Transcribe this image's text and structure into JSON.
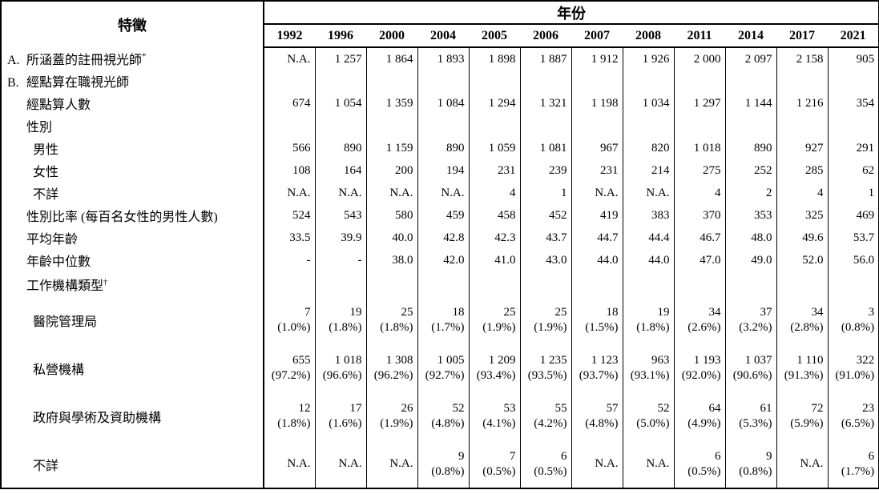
{
  "table": {
    "corner_header": "特徵",
    "year_group_header": "年份",
    "years": [
      "1992",
      "1996",
      "2000",
      "2004",
      "2005",
      "2006",
      "2007",
      "2008",
      "2011",
      "2014",
      "2017",
      "2021"
    ],
    "rows": [
      {
        "name": "covered-registered-optometrists",
        "prefix": "A.",
        "label": "所涵蓋的註冊視光師",
        "sup": "*",
        "indent": 0,
        "kind": "single",
        "cells": [
          "N.A.",
          "1 257",
          "1 864",
          "1 893",
          "1 898",
          "1 887",
          "1 912",
          "1 926",
          "2 000",
          "2 097",
          "2 158",
          "905"
        ]
      },
      {
        "name": "enumerated-working-optometrists",
        "prefix": "B.",
        "label": "經點算在職視光師",
        "sup": "",
        "indent": 0,
        "kind": "single",
        "cells": null
      },
      {
        "name": "persons-enumerated",
        "prefix": "",
        "label": "經點算人數",
        "sup": "",
        "indent": 1,
        "kind": "single",
        "cells": [
          "674",
          "1 054",
          "1 359",
          "1 084",
          "1 294",
          "1 321",
          "1 198",
          "1 034",
          "1 297",
          "1 144",
          "1 216",
          "354"
        ]
      },
      {
        "name": "sex",
        "prefix": "",
        "label": "性別",
        "sup": "",
        "indent": 1,
        "kind": "single",
        "cells": null
      },
      {
        "name": "male",
        "prefix": "",
        "label": "男性",
        "sup": "",
        "indent": 2,
        "kind": "single",
        "cells": [
          "566",
          "890",
          "1 159",
          "890",
          "1 059",
          "1 081",
          "967",
          "820",
          "1 018",
          "890",
          "927",
          "291"
        ]
      },
      {
        "name": "female",
        "prefix": "",
        "label": "女性",
        "sup": "",
        "indent": 2,
        "kind": "single",
        "cells": [
          "108",
          "164",
          "200",
          "194",
          "231",
          "239",
          "231",
          "214",
          "275",
          "252",
          "285",
          "62"
        ]
      },
      {
        "name": "sex-unknown",
        "prefix": "",
        "label": "不詳",
        "sup": "",
        "indent": 2,
        "kind": "single",
        "cells": [
          "N.A.",
          "N.A.",
          "N.A.",
          "N.A.",
          "4",
          "1",
          "N.A.",
          "N.A.",
          "4",
          "2",
          "4",
          "1"
        ]
      },
      {
        "name": "sex-ratio",
        "prefix": "",
        "label": "性別比率 (每百名女性的男性人數)",
        "sup": "",
        "indent": 1,
        "kind": "single",
        "cells": [
          "524",
          "543",
          "580",
          "459",
          "458",
          "452",
          "419",
          "383",
          "370",
          "353",
          "325",
          "469"
        ]
      },
      {
        "name": "mean-age",
        "prefix": "",
        "label": "平均年齡",
        "sup": "",
        "indent": 1,
        "kind": "single",
        "cells": [
          "33.5",
          "39.9",
          "40.0",
          "42.8",
          "42.3",
          "43.7",
          "44.7",
          "44.4",
          "46.7",
          "48.0",
          "49.6",
          "53.7"
        ]
      },
      {
        "name": "median-age",
        "prefix": "",
        "label": "年齡中位數",
        "sup": "",
        "indent": 1,
        "kind": "single",
        "cells": [
          "-",
          "-",
          "38.0",
          "42.0",
          "41.0",
          "43.0",
          "44.0",
          "44.0",
          "47.0",
          "49.0",
          "52.0",
          "56.0"
        ]
      },
      {
        "name": "type-of-working-organisation",
        "prefix": "",
        "label": "工作機構類型",
        "sup": "†",
        "indent": 1,
        "kind": "section",
        "cells": null
      },
      {
        "name": "hospital-authority",
        "prefix": "",
        "label": "醫院管理局",
        "sup": "",
        "indent": 2,
        "kind": "double",
        "cells": [
          {
            "count": "7",
            "pct": "(1.0%)"
          },
          {
            "count": "19",
            "pct": "(1.8%)"
          },
          {
            "count": "25",
            "pct": "(1.8%)"
          },
          {
            "count": "18",
            "pct": "(1.7%)"
          },
          {
            "count": "25",
            "pct": "(1.9%)"
          },
          {
            "count": "25",
            "pct": "(1.9%)"
          },
          {
            "count": "18",
            "pct": "(1.5%)"
          },
          {
            "count": "19",
            "pct": "(1.8%)"
          },
          {
            "count": "34",
            "pct": "(2.6%)"
          },
          {
            "count": "37",
            "pct": "(3.2%)"
          },
          {
            "count": "34",
            "pct": "(2.8%)"
          },
          {
            "count": "3",
            "pct": "(0.8%)"
          }
        ]
      },
      {
        "name": "private-sector",
        "prefix": "",
        "label": "私營機構",
        "sup": "",
        "indent": 2,
        "kind": "double",
        "cells": [
          {
            "count": "655",
            "pct": "(97.2%)"
          },
          {
            "count": "1 018",
            "pct": "(96.6%)"
          },
          {
            "count": "1 308",
            "pct": "(96.2%)"
          },
          {
            "count": "1 005",
            "pct": "(92.7%)"
          },
          {
            "count": "1 209",
            "pct": "(93.4%)"
          },
          {
            "count": "1 235",
            "pct": "(93.5%)"
          },
          {
            "count": "1 123",
            "pct": "(93.7%)"
          },
          {
            "count": "963",
            "pct": "(93.1%)"
          },
          {
            "count": "1 193",
            "pct": "(92.0%)"
          },
          {
            "count": "1 037",
            "pct": "(90.6%)"
          },
          {
            "count": "1 110",
            "pct": "(91.3%)"
          },
          {
            "count": "322",
            "pct": "(91.0%)"
          }
        ]
      },
      {
        "name": "government-academic-subvented",
        "prefix": "",
        "label": "政府與學術及資助機構",
        "sup": "",
        "indent": 2,
        "kind": "double",
        "cells": [
          {
            "count": "12",
            "pct": "(1.8%)"
          },
          {
            "count": "17",
            "pct": "(1.6%)"
          },
          {
            "count": "26",
            "pct": "(1.9%)"
          },
          {
            "count": "52",
            "pct": "(4.8%)"
          },
          {
            "count": "53",
            "pct": "(4.1%)"
          },
          {
            "count": "55",
            "pct": "(4.2%)"
          },
          {
            "count": "57",
            "pct": "(4.8%)"
          },
          {
            "count": "52",
            "pct": "(5.0%)"
          },
          {
            "count": "64",
            "pct": "(4.9%)"
          },
          {
            "count": "61",
            "pct": "(5.3%)"
          },
          {
            "count": "72",
            "pct": "(5.9%)"
          },
          {
            "count": "23",
            "pct": "(6.5%)"
          }
        ]
      },
      {
        "name": "organisation-unknown",
        "prefix": "",
        "label": "不詳",
        "sup": "",
        "indent": 2,
        "kind": "double",
        "cells": [
          {
            "count": "N.A.",
            "pct": ""
          },
          {
            "count": "N.A.",
            "pct": ""
          },
          {
            "count": "N.A.",
            "pct": ""
          },
          {
            "count": "9",
            "pct": "(0.8%)"
          },
          {
            "count": "7",
            "pct": "(0.5%)"
          },
          {
            "count": "6",
            "pct": "(0.5%)"
          },
          {
            "count": "N.A.",
            "pct": ""
          },
          {
            "count": "N.A.",
            "pct": ""
          },
          {
            "count": "6",
            "pct": "(0.5%)"
          },
          {
            "count": "9",
            "pct": "(0.8%)"
          },
          {
            "count": "N.A.",
            "pct": ""
          },
          {
            "count": "6",
            "pct": "(1.7%)"
          }
        ]
      }
    ]
  }
}
